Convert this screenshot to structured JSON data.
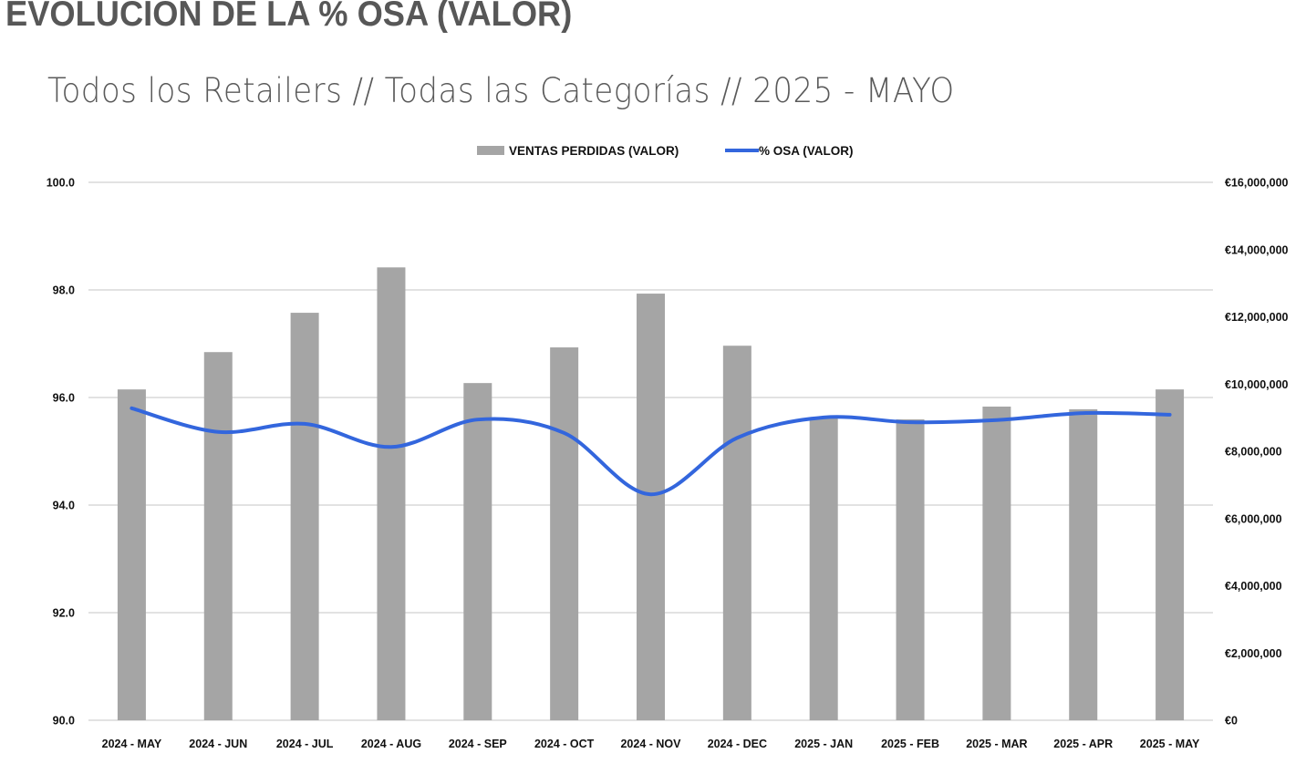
{
  "page": {
    "title": "EVOLUCIÓN DE LA % OSA (VALOR)",
    "subtitle": "Todos los Retailers // Todas las Categorías // 2025 - MAYO"
  },
  "chart_data": {
    "type": "bar",
    "combo": "bar + line (secondary axis)",
    "title": "EVOLUCIÓN DE LA % OSA (VALOR)",
    "subtitle": "Todos los Retailers // Todas las Categorías // 2025 - MAYO",
    "categories": [
      "2024 - MAY",
      "2024 - JUN",
      "2024 - JUL",
      "2024 - AUG",
      "2024 - SEP",
      "2024 - OCT",
      "2024 - NOV",
      "2024 - DEC",
      "2025 - JAN",
      "2025 - FEB",
      "2025 - MAR",
      "2025 - APR",
      "2025 - MAY"
    ],
    "series": [
      {
        "name": "VENTAS PERDIDAS (VALOR)",
        "type": "bar",
        "axis": "right",
        "color": "#a5a5a5",
        "values": [
          9840000,
          10950000,
          12120000,
          13470000,
          10030000,
          11090000,
          12690000,
          11140000,
          9000000,
          8950000,
          9330000,
          9250000,
          9840000
        ]
      },
      {
        "name": "% OSA (VALOR)",
        "type": "line",
        "smooth": true,
        "axis": "left",
        "color": "#3366dd",
        "values": [
          95.8,
          95.36,
          95.51,
          95.08,
          95.59,
          95.34,
          94.2,
          95.25,
          95.63,
          95.54,
          95.58,
          95.71,
          95.68
        ]
      }
    ],
    "y_left": {
      "label": "",
      "ylim": [
        90,
        100
      ],
      "ticks": [
        90,
        92,
        94,
        96,
        98,
        100
      ],
      "tick_labels": [
        "90.0",
        "92.0",
        "94.0",
        "96.0",
        "98.0",
        "100.0"
      ]
    },
    "y_right": {
      "label": "",
      "ylim": [
        0,
        16000000
      ],
      "ticks": [
        0,
        2000000,
        4000000,
        6000000,
        8000000,
        10000000,
        12000000,
        14000000,
        16000000
      ],
      "tick_labels": [
        "€0",
        "€2,000,000",
        "€4,000,000",
        "€6,000,000",
        "€8,000,000",
        "€10,000,000",
        "€12,000,000",
        "€14,000,000",
        "€16,000,000"
      ]
    },
    "xlabel": "",
    "grid": true,
    "legend": {
      "placement": "top-center",
      "entries": [
        "VENTAS PERDIDAS (VALOR)",
        "% OSA (VALOR)"
      ]
    }
  }
}
